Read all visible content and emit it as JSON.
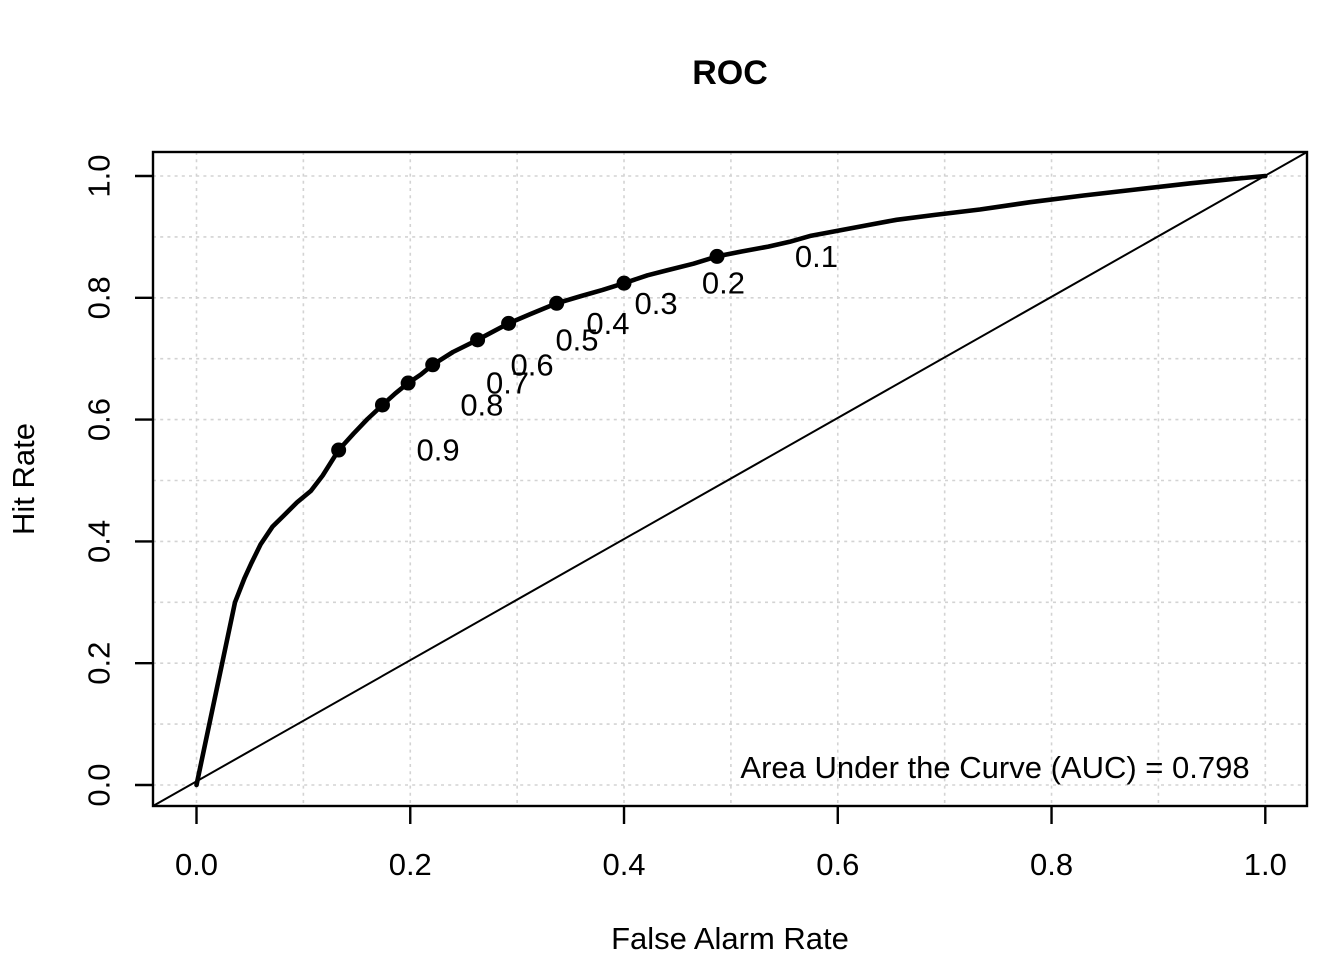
{
  "chart_data": {
    "type": "line",
    "title": "ROC",
    "xlabel": "False Alarm Rate",
    "ylabel": "Hit Rate",
    "xlim": [
      0.0,
      1.0
    ],
    "ylim": [
      0.0,
      1.0
    ],
    "x_ticks": {
      "values": [
        0.0,
        0.2,
        0.4,
        0.6,
        0.8,
        1.0
      ],
      "labels": [
        "0.0",
        "0.2",
        "0.4",
        "0.6",
        "0.8",
        "1.0"
      ]
    },
    "y_ticks": {
      "values": [
        0.0,
        0.2,
        0.4,
        0.6,
        0.8,
        1.0
      ],
      "labels": [
        "0.0",
        "0.2",
        "0.4",
        "0.6",
        "0.8",
        "1.0"
      ]
    },
    "grid": {
      "on": true,
      "step": 0.1,
      "style": "dotted",
      "color": "#d3d3d3"
    },
    "legend": {
      "shown": false
    },
    "chance_line": {
      "from": [
        0.0,
        0.0
      ],
      "to": [
        1.0,
        1.0
      ]
    },
    "series": [
      {
        "name": "ROC curve",
        "color": "#000000",
        "points": [
          [
            0.0,
            0.0
          ],
          [
            0.036,
            0.3
          ],
          [
            0.045,
            0.34
          ],
          [
            0.051,
            0.363
          ],
          [
            0.06,
            0.395
          ],
          [
            0.071,
            0.424
          ],
          [
            0.082,
            0.443
          ],
          [
            0.094,
            0.464
          ],
          [
            0.107,
            0.483
          ],
          [
            0.118,
            0.508
          ],
          [
            0.133,
            0.55
          ],
          [
            0.147,
            0.577
          ],
          [
            0.16,
            0.601
          ],
          [
            0.174,
            0.624
          ],
          [
            0.186,
            0.643
          ],
          [
            0.198,
            0.66
          ],
          [
            0.21,
            0.674
          ],
          [
            0.221,
            0.69
          ],
          [
            0.24,
            0.711
          ],
          [
            0.263,
            0.731
          ],
          [
            0.278,
            0.745
          ],
          [
            0.292,
            0.758
          ],
          [
            0.312,
            0.773
          ],
          [
            0.337,
            0.791
          ],
          [
            0.36,
            0.803
          ],
          [
            0.38,
            0.813
          ],
          [
            0.4,
            0.824
          ],
          [
            0.422,
            0.837
          ],
          [
            0.44,
            0.845
          ],
          [
            0.465,
            0.856
          ],
          [
            0.487,
            0.868
          ],
          [
            0.51,
            0.876
          ],
          [
            0.535,
            0.884
          ],
          [
            0.555,
            0.892
          ],
          [
            0.575,
            0.902
          ],
          [
            0.6,
            0.91
          ],
          [
            0.63,
            0.92
          ],
          [
            0.655,
            0.928
          ],
          [
            0.69,
            0.936
          ],
          [
            0.733,
            0.945
          ],
          [
            0.78,
            0.957
          ],
          [
            0.83,
            0.968
          ],
          [
            0.88,
            0.978
          ],
          [
            0.93,
            0.988
          ],
          [
            0.97,
            0.995
          ],
          [
            1.0,
            1.0
          ]
        ]
      }
    ],
    "operating_points": [
      {
        "threshold": "0.9",
        "x": 0.133,
        "y": 0.55
      },
      {
        "threshold": "0.8",
        "x": 0.174,
        "y": 0.624
      },
      {
        "threshold": "0.7",
        "x": 0.198,
        "y": 0.66
      },
      {
        "threshold": "0.6",
        "x": 0.221,
        "y": 0.69
      },
      {
        "threshold": "0.5",
        "x": 0.263,
        "y": 0.731
      },
      {
        "threshold": "0.4",
        "x": 0.292,
        "y": 0.758
      },
      {
        "threshold": "0.3",
        "x": 0.337,
        "y": 0.791
      },
      {
        "threshold": "0.2",
        "x": 0.4,
        "y": 0.824
      },
      {
        "threshold": "0.1",
        "x": 0.487,
        "y": 0.868
      }
    ],
    "threshold_label_dx": 0.093,
    "auc": 0.798,
    "auc_text": "Area Under the Curve (AUC) = 0.798",
    "colors": {
      "curve": "#000000",
      "diagonal": "#000000",
      "grid": "#d3d3d3",
      "point": "#000000",
      "text": "#000000",
      "background": "#ffffff"
    }
  }
}
